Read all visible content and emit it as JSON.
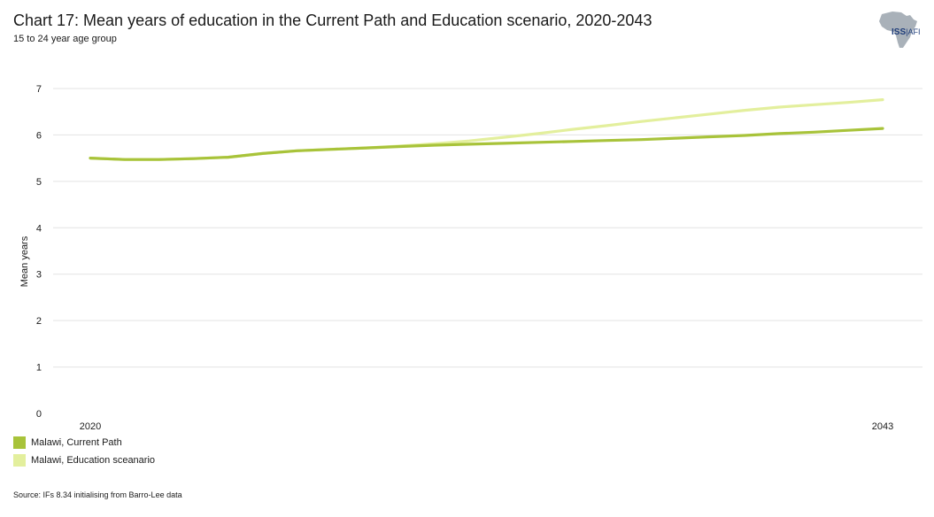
{
  "chart_data": {
    "type": "line",
    "title": "Chart 17: Mean years of education in the Current Path and Education scenario, 2020-2043",
    "subtitle": "15 to 24 year age group",
    "xlabel": "",
    "ylabel": "Mean years",
    "x": [
      2020,
      2021,
      2022,
      2023,
      2024,
      2025,
      2026,
      2027,
      2028,
      2029,
      2030,
      2031,
      2032,
      2033,
      2034,
      2035,
      2036,
      2037,
      2038,
      2039,
      2040,
      2041,
      2042,
      2043
    ],
    "x_tick_labels": [
      "2020",
      "2043"
    ],
    "y_ticks": [
      0,
      1,
      2,
      3,
      4,
      5,
      6,
      7
    ],
    "ylim": [
      0,
      7
    ],
    "xlim": [
      2020,
      2043
    ],
    "grid": true,
    "legend_position": "bottom-left",
    "series": [
      {
        "name": "Malawi, Current Path",
        "color": "#a8c33a",
        "values": [
          5.5,
          5.47,
          5.47,
          5.49,
          5.52,
          5.6,
          5.66,
          5.69,
          5.72,
          5.75,
          5.78,
          5.8,
          5.82,
          5.84,
          5.86,
          5.88,
          5.9,
          5.93,
          5.96,
          5.99,
          6.03,
          6.06,
          6.1,
          6.14
        ]
      },
      {
        "name": "Malawi, Education sceanario",
        "color": "#e3ef9d",
        "values": [
          5.5,
          5.47,
          5.47,
          5.49,
          5.52,
          5.6,
          5.66,
          5.69,
          5.72,
          5.76,
          5.81,
          5.87,
          5.95,
          6.03,
          6.12,
          6.2,
          6.29,
          6.37,
          6.45,
          6.53,
          6.6,
          6.65,
          6.7,
          6.76
        ]
      }
    ]
  },
  "source": "Source: IFs 8.34 initialising from Barro-Lee data",
  "logo": {
    "left": "ISS",
    "right": "AFI",
    "sep": "|"
  }
}
